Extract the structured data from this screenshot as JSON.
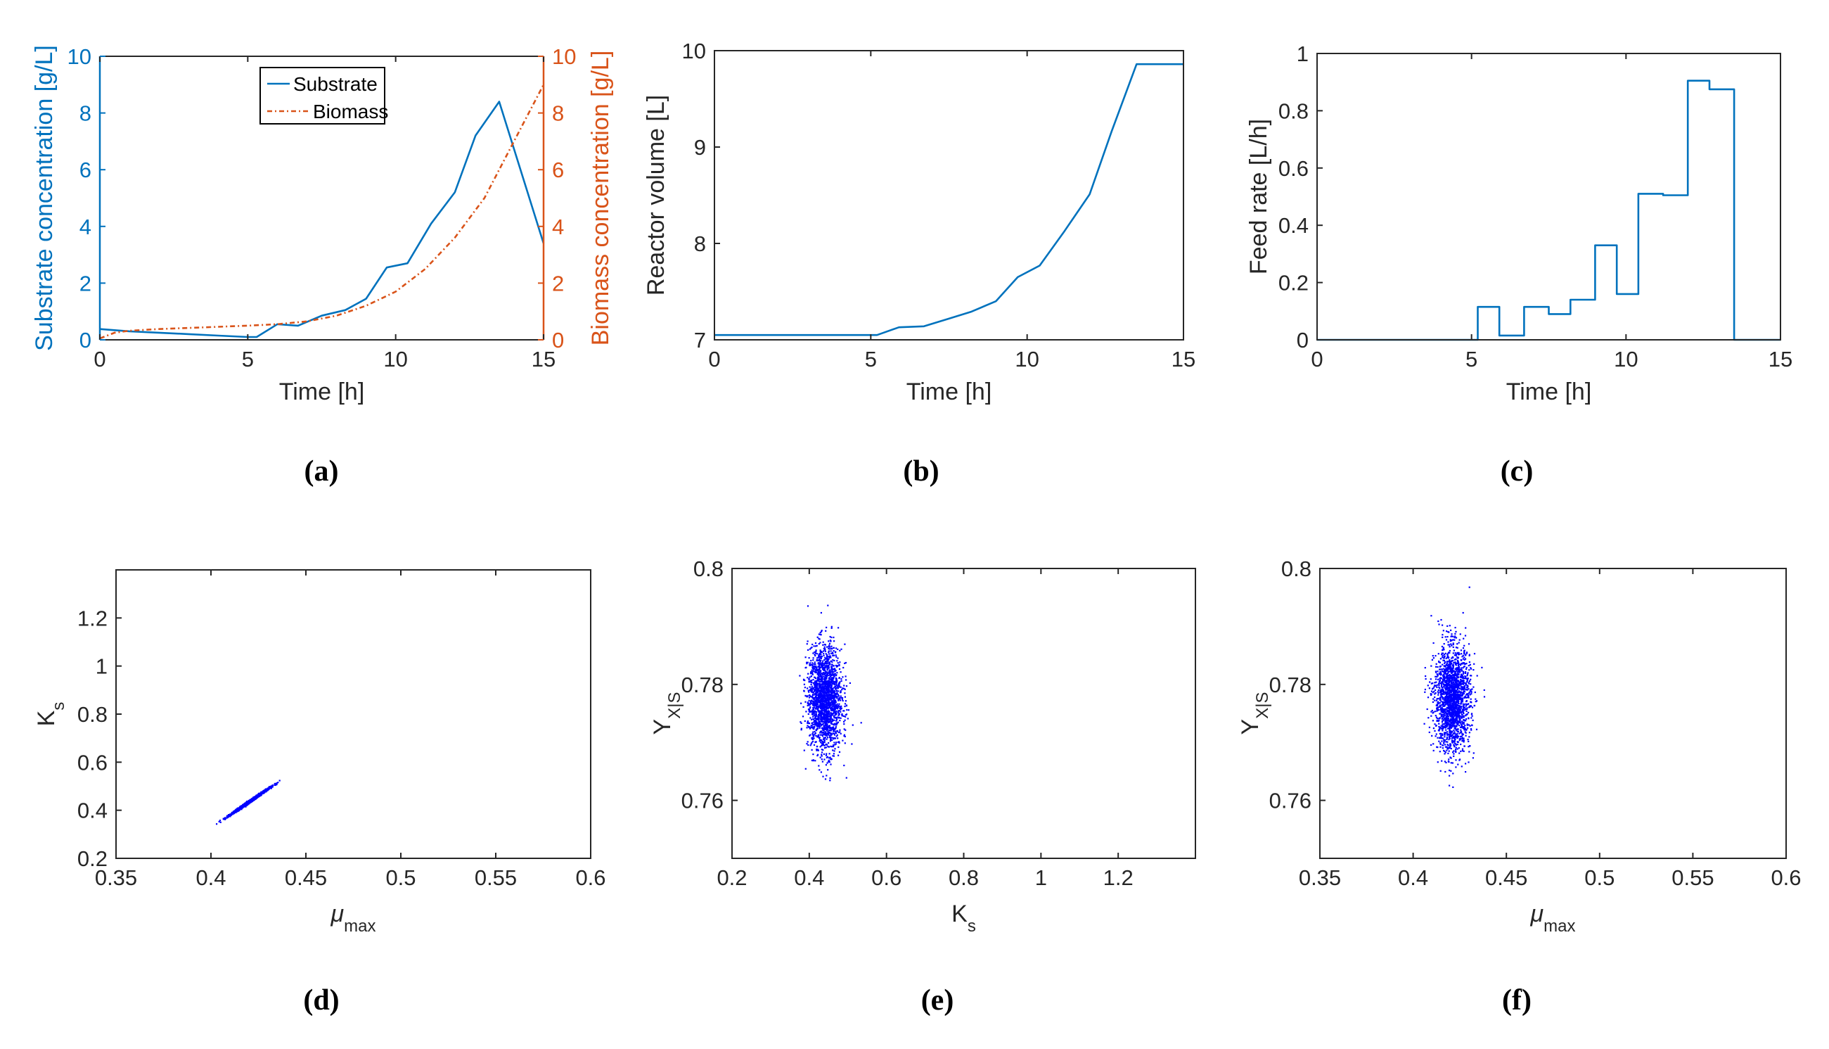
{
  "colors": {
    "blue": "#0072BD",
    "orange": "#D95319",
    "scatter": "#0000FF",
    "axis": "#262626"
  },
  "chart_data": [
    {
      "id": "a",
      "type": "line",
      "panel_label": "(a)",
      "xlabel": "Time [h]",
      "ylabel_left": "Substrate concentration [g/L]",
      "ylabel_right": "Biomass concentration [g/L]",
      "xlim": [
        0,
        15
      ],
      "ylim_left": [
        0,
        10
      ],
      "ylim_right": [
        0,
        10
      ],
      "xticks": [
        "0",
        "5",
        "10",
        "15"
      ],
      "yticks_left": [
        "0",
        "2",
        "4",
        "6",
        "8",
        "10"
      ],
      "yticks_right": [
        "0",
        "2",
        "4",
        "6",
        "8",
        "10"
      ],
      "legend": [
        "Substrate",
        "Biomass"
      ],
      "series": [
        {
          "name": "Substrate",
          "axis": "left",
          "style": "solid",
          "x": [
            0,
            1,
            2,
            3,
            4,
            5,
            5.3,
            6,
            6.7,
            7.5,
            8.3,
            9,
            9.7,
            10.4,
            11.2,
            12,
            12.7,
            13.5,
            15
          ],
          "y": [
            0.38,
            0.3,
            0.25,
            0.2,
            0.15,
            0.1,
            0.1,
            0.55,
            0.5,
            0.85,
            1.05,
            1.45,
            2.55,
            2.7,
            4.1,
            5.2,
            7.2,
            8.4,
            3.4
          ]
        },
        {
          "name": "Biomass",
          "axis": "right",
          "style": "dashed",
          "x": [
            0,
            0.5,
            1,
            2,
            3,
            4,
            5,
            6,
            7,
            8,
            9,
            10,
            11,
            12,
            13,
            14,
            15
          ],
          "y": [
            0.05,
            0.25,
            0.32,
            0.38,
            0.42,
            0.46,
            0.5,
            0.55,
            0.65,
            0.85,
            1.2,
            1.7,
            2.5,
            3.6,
            5.0,
            7.0,
            9.0
          ]
        }
      ]
    },
    {
      "id": "b",
      "type": "line",
      "panel_label": "(b)",
      "xlabel": "Time [h]",
      "ylabel": "Reactor volume [L]",
      "xlim": [
        0,
        15
      ],
      "ylim": [
        7,
        10
      ],
      "xticks": [
        "0",
        "5",
        "10",
        "15"
      ],
      "yticks": [
        "7",
        "8",
        "9",
        "10"
      ],
      "series": [
        {
          "name": "Reactor volume",
          "x": [
            0,
            5.2,
            5.9,
            6.7,
            7.5,
            8.2,
            9,
            9.7,
            10.4,
            11.2,
            12,
            12.7,
            13.5,
            15
          ],
          "y": [
            7.05,
            7.05,
            7.13,
            7.14,
            7.22,
            7.29,
            7.4,
            7.65,
            7.77,
            8.13,
            8.51,
            9.16,
            9.86,
            9.86
          ]
        }
      ]
    },
    {
      "id": "c",
      "type": "line",
      "panel_label": "(c)",
      "xlabel": "Time [h]",
      "ylabel": "Feed rate [L/h]",
      "xlim": [
        0,
        15
      ],
      "ylim": [
        0,
        1
      ],
      "xticks": [
        "0",
        "5",
        "10",
        "15"
      ],
      "yticks": [
        "0",
        "0.2",
        "0.4",
        "0.6",
        "0.8",
        "1"
      ],
      "series": [
        {
          "name": "Feed rate",
          "style": "step",
          "edges": [
            0,
            5.2,
            5.9,
            6.7,
            7.5,
            8.2,
            9,
            9.7,
            10.4,
            11.2,
            12,
            12.7,
            13.5,
            15
          ],
          "values": [
            0,
            0.115,
            0.015,
            0.115,
            0.09,
            0.14,
            0.33,
            0.16,
            0.51,
            0.505,
            0.905,
            0.875,
            0
          ]
        }
      ]
    },
    {
      "id": "d",
      "type": "scatter",
      "panel_label": "(d)",
      "xlabel": "μ",
      "xlabel_sub": "max",
      "ylabel": "K",
      "ylabel_sub": "s",
      "xlim": [
        0.35,
        0.6
      ],
      "ylim": [
        0.2,
        1.4
      ],
      "xticks": [
        "0.35",
        "0.4",
        "0.45",
        "0.5",
        "0.55",
        "0.6"
      ],
      "yticks": [
        "0.2",
        "0.4",
        "0.6",
        "0.8",
        "1",
        "1.2"
      ],
      "cloud": {
        "n": 2000,
        "mean_x": 0.421,
        "mean_y": 0.44,
        "sd_x": 0.0048,
        "sd_y": 0.026,
        "corr": 0.995
      }
    },
    {
      "id": "e",
      "type": "scatter",
      "panel_label": "(e)",
      "xlabel": "K",
      "xlabel_sub": "s",
      "ylabel": "Y",
      "ylabel_sub": "X|S",
      "xlim": [
        0.2,
        1.4
      ],
      "ylim": [
        0.75,
        0.8
      ],
      "xticks": [
        "0.2",
        "0.4",
        "0.6",
        "0.8",
        "1",
        "1.2"
      ],
      "yticks": [
        "0.76",
        "0.78",
        "0.8"
      ],
      "cloud": {
        "n": 2000,
        "mean_x": 0.44,
        "mean_y": 0.7775,
        "sd_x": 0.022,
        "sd_y": 0.0045,
        "corr": 0.0
      }
    },
    {
      "id": "f",
      "type": "scatter",
      "panel_label": "(f)",
      "xlabel": "μ",
      "xlabel_sub": "max",
      "ylabel": "Y",
      "ylabel_sub": "X|S",
      "xlim": [
        0.35,
        0.6
      ],
      "ylim": [
        0.75,
        0.8
      ],
      "xticks": [
        "0.35",
        "0.4",
        "0.45",
        "0.5",
        "0.55",
        "0.6"
      ],
      "yticks": [
        "0.76",
        "0.78",
        "0.8"
      ],
      "cloud": {
        "n": 2000,
        "mean_x": 0.421,
        "mean_y": 0.7775,
        "sd_x": 0.0048,
        "sd_y": 0.0045,
        "corr": 0.0
      }
    }
  ]
}
